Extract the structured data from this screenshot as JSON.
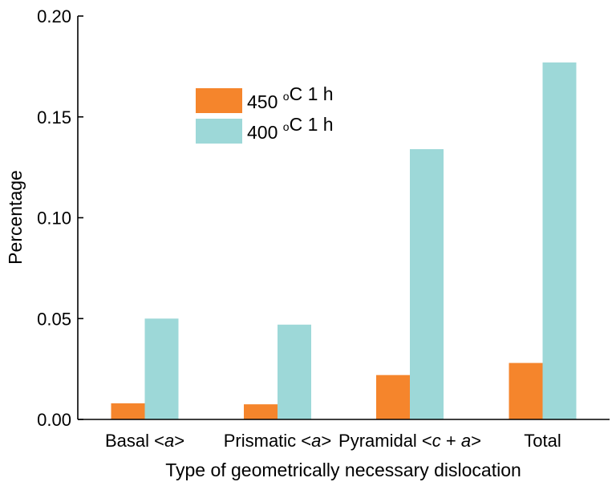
{
  "chart_data": {
    "type": "bar",
    "categories": [
      {
        "parts": [
          {
            "t": "Basal <"
          },
          {
            "t": "a",
            "i": true
          },
          {
            "t": ">"
          }
        ]
      },
      {
        "parts": [
          {
            "t": "Prismatic <"
          },
          {
            "t": "a",
            "i": true
          },
          {
            "t": ">"
          }
        ]
      },
      {
        "parts": [
          {
            "t": "Pyramidal <"
          },
          {
            "t": "c",
            "i": true
          },
          {
            "t": " + "
          },
          {
            "t": "a",
            "i": true
          },
          {
            "t": ">"
          }
        ]
      },
      {
        "parts": [
          {
            "t": "Total"
          }
        ]
      }
    ],
    "series": [
      {
        "name_parts": [
          {
            "t": "450 "
          },
          {
            "t": "o",
            "sup": true
          },
          {
            "t": "C 1 h"
          }
        ],
        "color": "#F5852C",
        "values": [
          0.008,
          0.0075,
          0.022,
          0.028
        ]
      },
      {
        "name_parts": [
          {
            "t": "400 "
          },
          {
            "t": "o",
            "sup": true
          },
          {
            "t": "C 1 h"
          }
        ],
        "color": "#9DD8D8",
        "values": [
          0.05,
          0.047,
          0.134,
          0.177
        ]
      }
    ],
    "yticks": [
      "0.00",
      "0.05",
      "0.10",
      "0.15",
      "0.20"
    ],
    "ylim": [
      0,
      0.2
    ],
    "xlabel": "Type of geometrically necessary dislocation",
    "ylabel": "Percentage",
    "legend_position": "upper-left",
    "grid": false
  }
}
